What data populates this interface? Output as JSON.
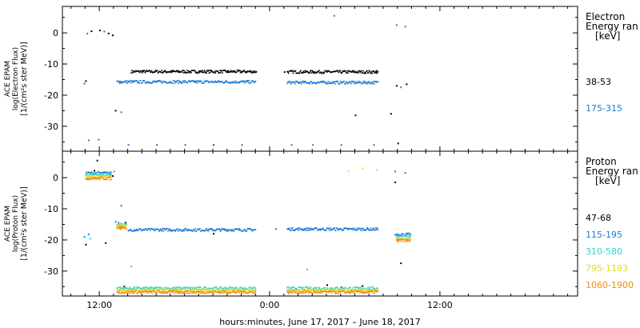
{
  "xaxis": {
    "label": "hours:minutes, June 17, 2017 – June 18, 2017",
    "ticks": [
      "12:00",
      "0:00",
      "12:00"
    ],
    "tick_hours": [
      12,
      24,
      36
    ],
    "minor_step_hours": 1,
    "range_hours": [
      9.4,
      45.7
    ]
  },
  "chart_data": [
    {
      "type": "scatter",
      "panel": "electron",
      "ylabel": [
        "ACE EPAM",
        "log(Electron Flux)",
        "[1/(cm²s ster MeV)]"
      ],
      "ylim": [
        -38,
        8.5
      ],
      "yticks": [
        0,
        -10,
        -20,
        -30
      ],
      "legend_title": [
        "Electron",
        "Energy ran",
        "[keV]"
      ],
      "series": [
        {
          "name": "38-53",
          "color": "#000000",
          "points": [
            [
              11.0,
              -15.5
            ],
            [
              11.4,
              0.5
            ],
            [
              12.0,
              0.8
            ],
            [
              12.6,
              -0.2
            ],
            [
              12.9,
              -0.8
            ],
            [
              13.1,
              -25
            ],
            [
              15.0,
              -12.2
            ],
            [
              17.0,
              -12.5
            ],
            [
              19.0,
              -12.4
            ],
            [
              21.0,
              -12.6
            ],
            [
              23.0,
              -12.5
            ],
            [
              25.0,
              -12.6
            ],
            [
              27.0,
              -12.5
            ],
            [
              29.0,
              -12.8
            ],
            [
              31.5,
              -12.9
            ],
            [
              30.0,
              -26.5
            ],
            [
              32.5,
              -26.0
            ],
            [
              32.9,
              -17.0
            ],
            [
              33.6,
              -16.5
            ],
            [
              33.0,
              -35.5
            ],
            [
              20.0,
              -36.0
            ]
          ],
          "segments": [
            [
              14.2,
              23.0,
              -12.5
            ],
            [
              25.2,
              31.6,
              -12.6
            ]
          ]
        },
        {
          "name": "175-315",
          "color": "#1a7ad6",
          "points": [
            [
              10.9,
              -16.3
            ],
            [
              11.1,
              -0.2
            ],
            [
              11.2,
              -34.5
            ],
            [
              11.9,
              -34.3
            ],
            [
              12.3,
              0.4
            ],
            [
              13.4,
              -15.6
            ],
            [
              13.5,
              -25.5
            ],
            [
              14.0,
              -36.0
            ],
            [
              16.0,
              -36.0
            ],
            [
              18.0,
              -36.0
            ],
            [
              20.0,
              -36.0
            ],
            [
              22.0,
              -36.0
            ],
            [
              25.5,
              -36.0
            ],
            [
              27.0,
              -36.0
            ],
            [
              29.0,
              -36.0
            ],
            [
              31.3,
              -36.0
            ],
            [
              28.5,
              5.5
            ],
            [
              32.9,
              2.5
            ],
            [
              33.5,
              2.0
            ],
            [
              33.2,
              -17.5
            ]
          ],
          "segments": [
            [
              13.2,
              23.0,
              -15.8
            ],
            [
              25.2,
              31.6,
              -16.0
            ]
          ]
        }
      ]
    },
    {
      "type": "scatter",
      "panel": "proton",
      "ylabel": [
        "ACE EPAM",
        "log(Proton Flux)",
        "[1/(cm²s ster MeV)]"
      ],
      "ylim": [
        -38,
        8.5
      ],
      "yticks": [
        0,
        -10,
        -20,
        -30
      ],
      "legend_title": [
        "Proton",
        "Energy ran",
        "[keV]"
      ],
      "series": [
        {
          "name": "47-68",
          "color": "#000000",
          "points": [
            [
              11.0,
              -21.5
            ],
            [
              11.8,
              5.5
            ],
            [
              12.4,
              -21.0
            ],
            [
              13.7,
              -35.0
            ],
            [
              13.8,
              -14.5
            ],
            [
              20.0,
              -18.0
            ],
            [
              28.0,
              -34.5
            ],
            [
              29.0,
              -35.2
            ],
            [
              30.5,
              -34.8
            ],
            [
              32.8,
              -1.5
            ],
            [
              33.2,
              -27.5
            ],
            [
              12.9,
              0.5
            ],
            [
              11.6,
              2.2
            ]
          ],
          "segments": []
        },
        {
          "name": "115-195",
          "color": "#1a7ad6",
          "points": [
            [
              10.9,
              -19.0
            ],
            [
              11.2,
              -18.2
            ],
            [
              13.3,
              -14.5
            ],
            [
              13.5,
              -9.0
            ],
            [
              14.0,
              -17.0
            ],
            [
              13.1,
              -14.2
            ],
            [
              24.4,
              -16.5
            ],
            [
              32.9,
              -18.5
            ],
            [
              33.5,
              1.5
            ],
            [
              32.8,
              2.0
            ]
          ],
          "segments": [
            [
              14.1,
              23.0,
              -16.8
            ],
            [
              25.2,
              31.6,
              -16.6
            ],
            [
              11.0,
              12.8,
              1.4
            ],
            [
              32.8,
              33.9,
              -18.3
            ]
          ]
        },
        {
          "name": "310-580",
          "color": "#2cd6cf",
          "points": [
            [
              10.9,
              -19.2
            ],
            [
              11.3,
              -19.6
            ],
            [
              13.5,
              -16.0
            ],
            [
              33.0,
              -19.0
            ],
            [
              28.5,
              -35.8
            ]
          ],
          "segments": [
            [
              11.0,
              12.8,
              0.9
            ],
            [
              13.2,
              23.0,
              -35.6
            ],
            [
              25.2,
              31.6,
              -35.6
            ],
            [
              13.2,
              13.9,
              -15.0
            ],
            [
              32.9,
              33.9,
              -19.0
            ]
          ]
        },
        {
          "name": "795-1193",
          "color": "#e6d81e",
          "points": [
            [
              29.5,
              2.0
            ],
            [
              30.5,
              3.0
            ],
            [
              31.5,
              2.5
            ],
            [
              32.9,
              -20.0
            ],
            [
              13.3,
              -15.8
            ]
          ],
          "segments": [
            [
              11.0,
              12.8,
              0.3
            ],
            [
              13.2,
              23.0,
              -36.2
            ],
            [
              25.2,
              31.6,
              -36.2
            ],
            [
              13.2,
              13.9,
              -15.6
            ],
            [
              32.9,
              33.9,
              -19.6
            ]
          ]
        },
        {
          "name": "1060-1900",
          "color": "#f08a0c",
          "points": [
            [
              13.0,
              2.0
            ],
            [
              14.2,
              -28.5
            ],
            [
              26.6,
              -29.5
            ],
            [
              33.0,
              -20.5
            ],
            [
              13.4,
              -16.2
            ]
          ],
          "segments": [
            [
              11.0,
              12.8,
              -0.3
            ],
            [
              13.2,
              23.0,
              -36.8
            ],
            [
              25.2,
              31.6,
              -36.8
            ],
            [
              13.2,
              13.9,
              -16.2
            ],
            [
              32.9,
              33.9,
              -20.2
            ]
          ]
        }
      ]
    }
  ]
}
